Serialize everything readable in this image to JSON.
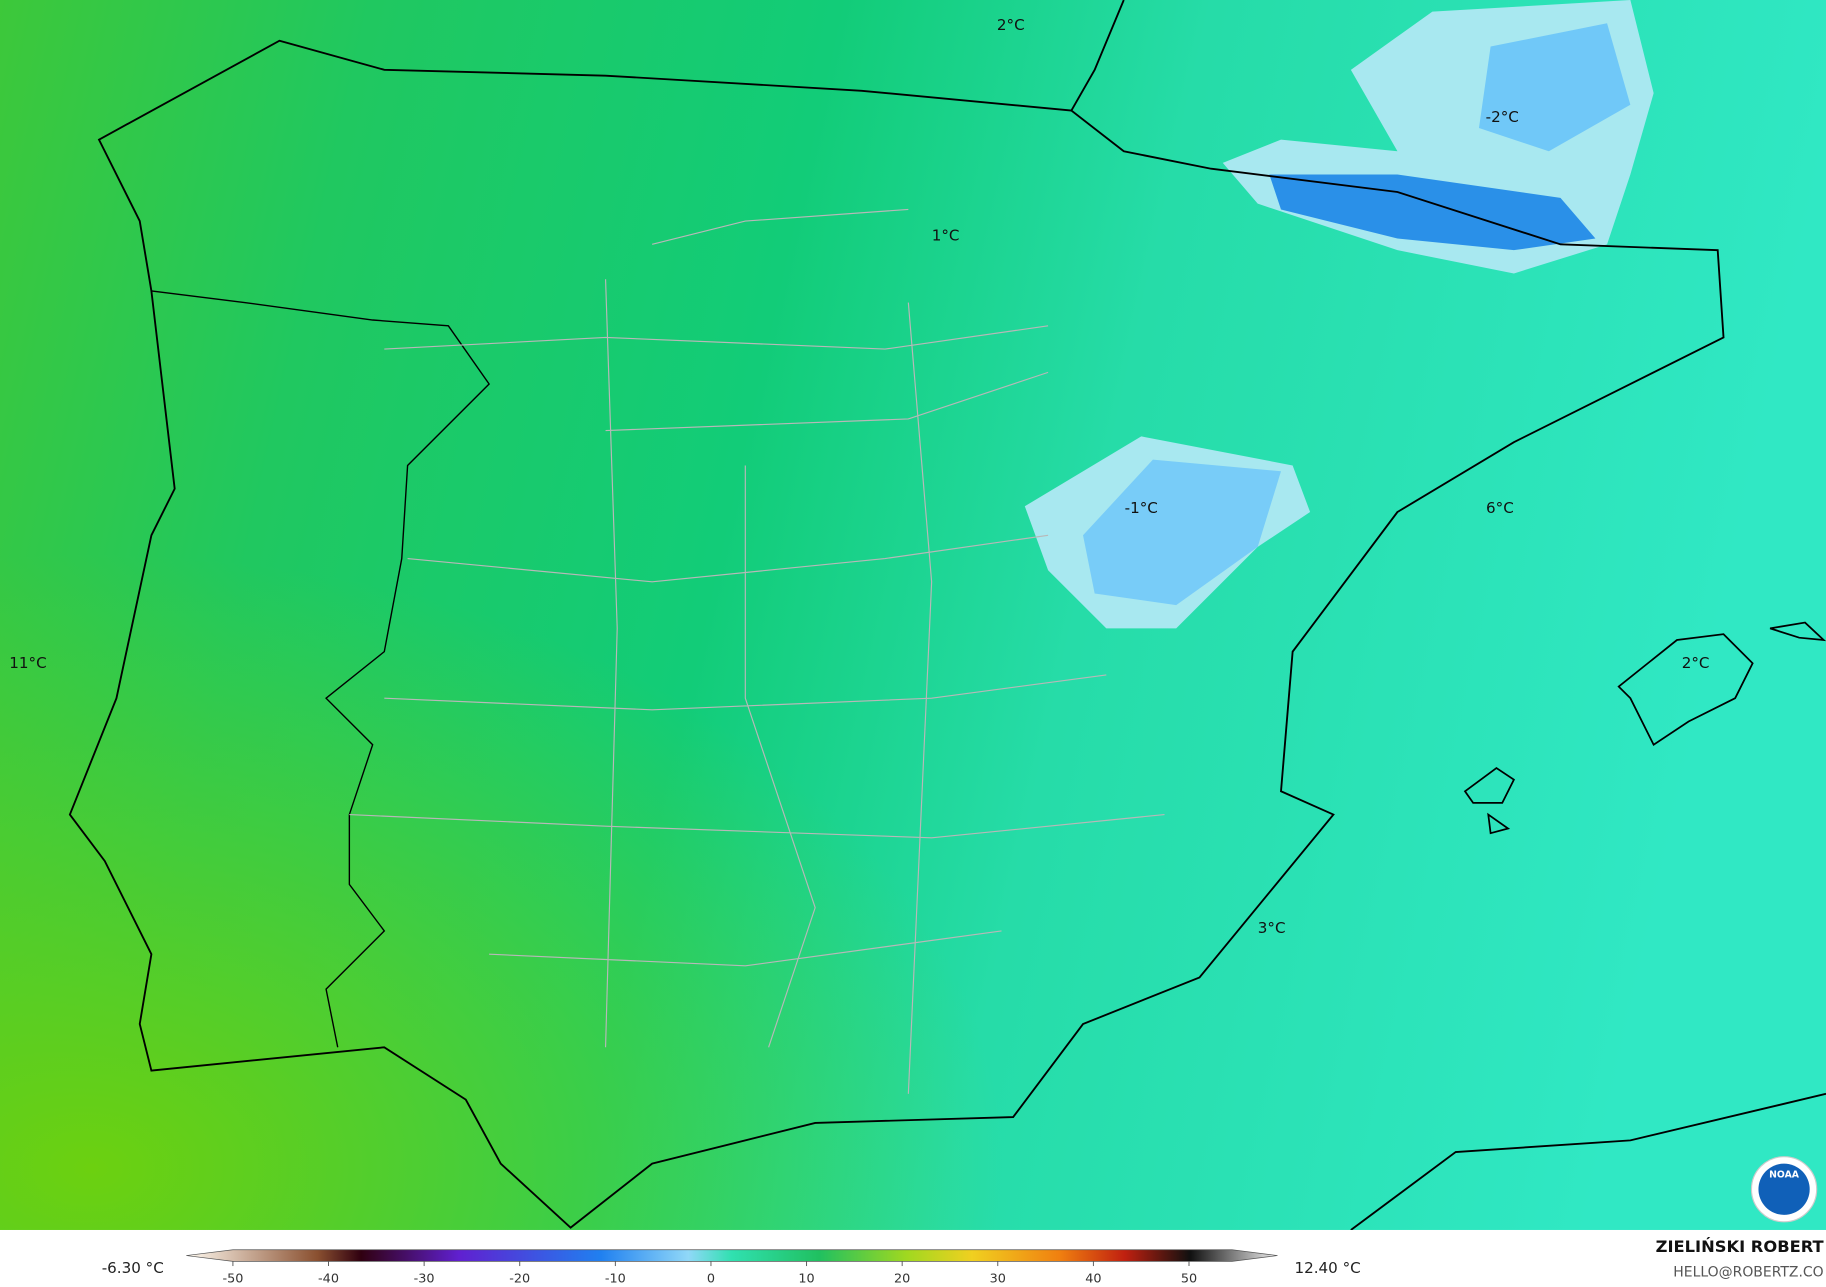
{
  "map_labels": [
    "2°C",
    "1°C",
    "-2°C",
    "-1°C",
    "6°C",
    "11°C",
    "2°C",
    "3°C"
  ],
  "colorbar": {
    "min_label": "-6.30 °C",
    "max_label": "12.40 °C",
    "ticks": [
      -50,
      -40,
      -30,
      -20,
      -10,
      0,
      10,
      20,
      30,
      40,
      50
    ]
  },
  "logo": "NOAA",
  "author": "ZIELIŃSKI ROBERT",
  "email": "HELLO@ROBERTZ.CO"
}
